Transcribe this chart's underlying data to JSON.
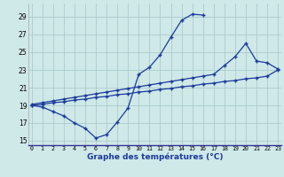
{
  "xlabel": "Graphe des températures (°C)",
  "bg_color": "#cfe8e8",
  "grid_color": "#aacccc",
  "line_color": "#1a3a9c",
  "curve1_x": [
    0,
    1,
    2,
    3,
    4,
    5,
    6,
    7,
    8,
    9,
    10,
    11,
    12,
    13,
    14,
    15,
    16
  ],
  "curve1_y": [
    19.0,
    18.8,
    18.3,
    17.8,
    17.0,
    16.4,
    15.3,
    15.7,
    17.1,
    18.7,
    22.5,
    23.3,
    24.7,
    26.7,
    28.6,
    29.3,
    29.2
  ],
  "curve2_x": [
    0,
    1,
    2,
    3,
    4,
    5,
    6,
    7,
    8,
    9,
    10,
    11,
    12,
    13,
    14,
    15,
    16,
    17,
    18,
    19,
    20,
    21,
    22,
    23
  ],
  "curve2_y": [
    19.1,
    19.3,
    19.5,
    19.7,
    19.9,
    20.1,
    20.3,
    20.5,
    20.7,
    20.9,
    21.1,
    21.3,
    21.5,
    21.7,
    21.9,
    22.1,
    22.3,
    22.5,
    23.5,
    24.5,
    26.0,
    24.0,
    23.8,
    23.1
  ],
  "curve3_x": [
    0,
    1,
    2,
    3,
    4,
    5,
    6,
    7,
    8,
    9,
    10,
    11,
    12,
    13,
    14,
    15,
    16,
    17,
    18,
    19,
    20,
    21,
    22,
    23
  ],
  "curve3_y": [
    19.0,
    19.1,
    19.3,
    19.4,
    19.6,
    19.7,
    19.9,
    20.0,
    20.2,
    20.3,
    20.5,
    20.6,
    20.8,
    20.9,
    21.1,
    21.2,
    21.4,
    21.5,
    21.7,
    21.8,
    22.0,
    22.1,
    22.3,
    23.0
  ],
  "ylim": [
    14.5,
    30.5
  ],
  "yticks": [
    15,
    17,
    19,
    21,
    23,
    25,
    27,
    29
  ],
  "xlim": [
    -0.3,
    23.3
  ],
  "xticks": [
    0,
    1,
    2,
    3,
    4,
    5,
    6,
    7,
    8,
    9,
    10,
    11,
    12,
    13,
    14,
    15,
    16,
    17,
    18,
    19,
    20,
    21,
    22,
    23
  ]
}
